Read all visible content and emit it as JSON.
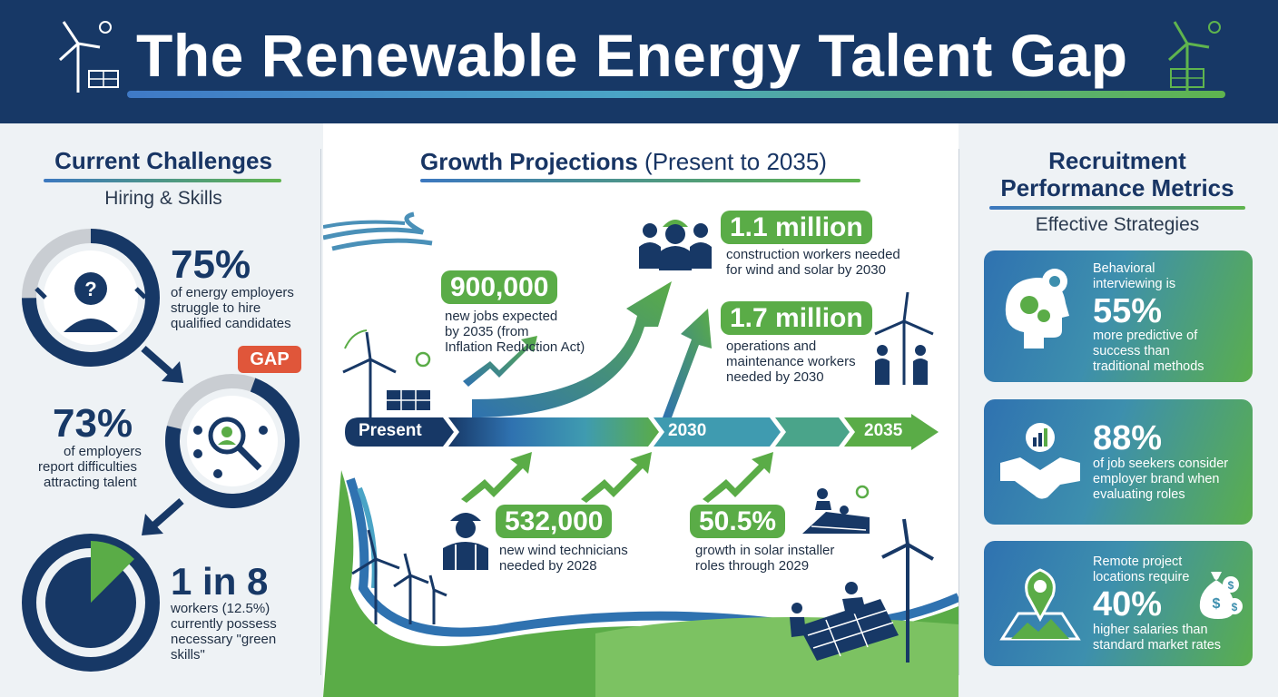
{
  "header": {
    "title": "The Renewable Energy Talent Gap"
  },
  "left": {
    "title": "Current Challenges",
    "subtitle": "Hiring & Skills",
    "gap_badge": "GAP",
    "stat1": {
      "value": "75%",
      "text_l1": "of energy employers",
      "text_l2": "struggle to hire",
      "text_l3": "qualified candidates"
    },
    "stat2": {
      "value": "73%",
      "text_l1": "of employers",
      "text_l2": "report difficulties",
      "text_l3": "attracting talent"
    },
    "stat3": {
      "value": "1 in 8",
      "text_l1": "workers (12.5%)",
      "text_l2": "currently possess",
      "text_l3": "necessary \"green",
      "text_l4": "skills\""
    }
  },
  "middle": {
    "title": "Growth Projections",
    "title_suffix": "(Present to 2035)",
    "timeline": {
      "start": "Present",
      "mid": "2030",
      "end": "2035"
    },
    "stat_900k": {
      "value": "900,000",
      "l1": "new jobs expected",
      "l2": "by 2035 (from",
      "l3": "Inflation Reduction Act)"
    },
    "stat_1_1m": {
      "value": "1.1 million",
      "l1": "construction workers needed",
      "l2": "for wind and solar by 2030"
    },
    "stat_1_7m": {
      "value": "1.7 million",
      "l1": "operations and",
      "l2": "maintenance workers",
      "l3": "needed by 2030"
    },
    "stat_532k": {
      "value": "532,000",
      "l1": "new wind technicians",
      "l2": "needed by 2028"
    },
    "stat_50_5": {
      "value": "50.5%",
      "l1": "growth in solar installer",
      "l2": "roles through 2029"
    }
  },
  "right": {
    "title_l1": "Recruitment",
    "title_l2": "Performance Metrics",
    "subtitle": "Effective Strategies",
    "card1": {
      "pre_l1": "Behavioral",
      "pre_l2": "interviewing is",
      "value": "55%",
      "l1": "more predictive of",
      "l2": "success than",
      "l3": "traditional methods"
    },
    "card2": {
      "value": "88%",
      "l1": "of job seekers consider",
      "l2": "employer brand when",
      "l3": "evaluating roles"
    },
    "card3": {
      "pre_l1": "Remote project",
      "pre_l2": "locations require",
      "value": "40%",
      "l1": "higher salaries than",
      "l2": "standard market rates"
    }
  },
  "colors": {
    "navy": "#173866",
    "green": "#5aac47",
    "blue": "#2f72b0",
    "orange": "#e0563a"
  }
}
